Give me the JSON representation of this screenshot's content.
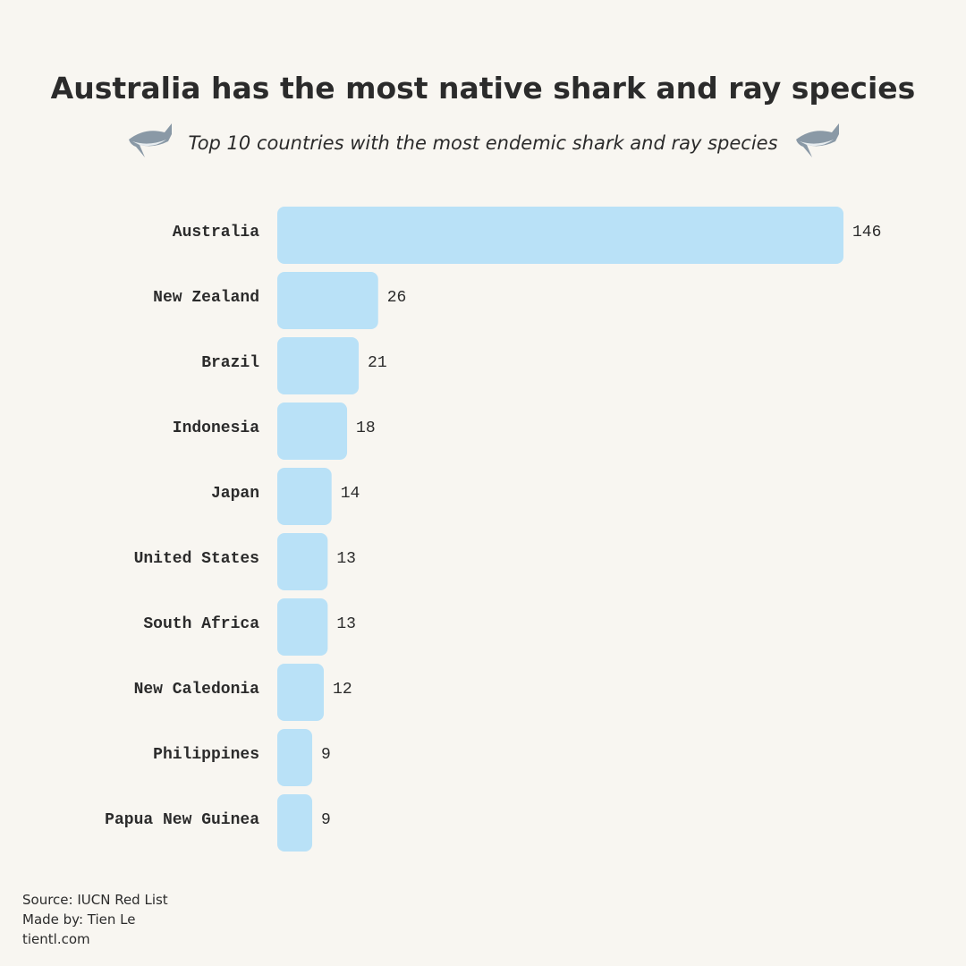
{
  "chart_data": {
    "type": "bar",
    "orientation": "horizontal",
    "title": "Australia has the most native shark and ray species",
    "subtitle": "Top 10 countries with the most endemic shark and ray species",
    "categories": [
      "Australia",
      "New Zealand",
      "Brazil",
      "Indonesia",
      "Japan",
      "United States",
      "South Africa",
      "New Caledonia",
      "Philippines",
      "Papua New Guinea"
    ],
    "values": [
      146,
      26,
      21,
      18,
      14,
      13,
      13,
      12,
      9,
      9
    ],
    "color": "#b9e1f7",
    "source": "Source: IUCN Red List",
    "credit": "Made by: Tien Le",
    "website": "tientl.com"
  }
}
